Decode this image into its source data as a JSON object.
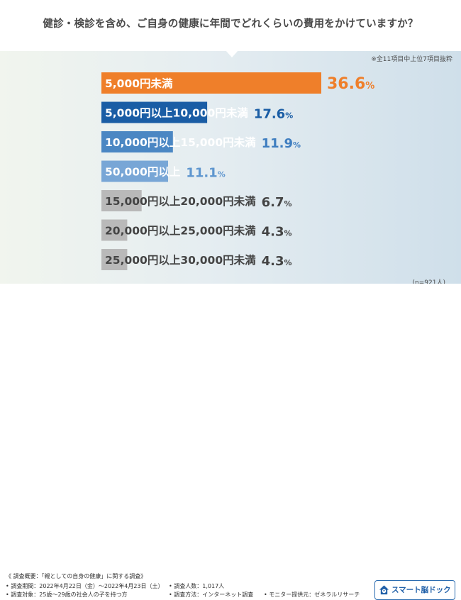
{
  "question": "健診・検診を含め、ご自身の健康に年間でどれくらいの費用をかけていますか？",
  "note": "※全11項目中上位7項目抜粋",
  "sample_size": "(n=921人)",
  "colors": {
    "orange": "#ef7f2a",
    "dark_blue": "#1a5da5",
    "mid_blue": "#4b87c3",
    "light_blue": "#78a6d6",
    "gray": "#b9b9b9",
    "value_orange": "#ef7f2a",
    "value_dark": "#1a5da5",
    "value_mid": "#3f7ec0",
    "value_light": "#5e96cf",
    "value_gray": "#444444"
  },
  "chart_data": {
    "type": "bar",
    "orientation": "horizontal",
    "unit": "%",
    "categories": [
      "5,000円未満",
      "5,000円以上10,000円未満",
      "10,000円以上15,000円未満",
      "50,000円以上",
      "15,000円以上20,000円未満",
      "20,000円以上25,000円未満",
      "25,000円以上30,000円未満"
    ],
    "values": [
      36.6,
      17.6,
      11.9,
      11.1,
      6.7,
      4.3,
      4.3
    ],
    "value_labels": [
      "36.6%",
      "17.6%",
      "11.9%",
      "11.1%",
      "6.7%",
      "4.3%",
      "4.3%"
    ],
    "bar_colors": [
      "#ef7f2a",
      "#1a5da5",
      "#4b87c3",
      "#78a6d6",
      "#b9b9b9",
      "#b9b9b9",
      "#b9b9b9"
    ],
    "label_colors": [
      "#ffffff",
      "#ffffff",
      "#ffffff",
      "#ffffff",
      "#444444",
      "#444444",
      "#444444"
    ],
    "value_colors": [
      "#ef7f2a",
      "#1a5da5",
      "#3f7ec0",
      "#5e96cf",
      "#444444",
      "#444444",
      "#444444"
    ]
  },
  "footer": {
    "title": "《 調査概要：「親としての自身の健康」に関する調査》",
    "period": "• 調査期間：2022年4月22日（金）～2022年4月23日（土）",
    "respondents": "• 調査人数：1,017人",
    "target": "• 調査対象：25歳～29歳の社会人の子を持つ方",
    "method": "• 調査方法：インターネット調査",
    "provider": "• モニター提供元：ゼネラルリサーチ"
  },
  "logo": {
    "text": "スマート脳ドック",
    "icon": "house-brain-icon"
  }
}
